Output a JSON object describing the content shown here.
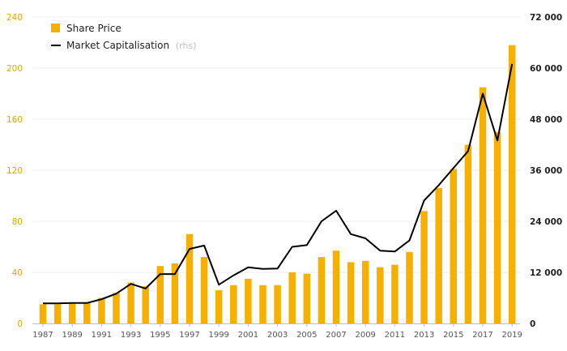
{
  "chart_data": {
    "type": "bar",
    "x": [
      1987,
      1988,
      1989,
      1990,
      1991,
      1992,
      1993,
      1994,
      1995,
      1996,
      1997,
      1998,
      1999,
      2000,
      2001,
      2002,
      2003,
      2004,
      2005,
      2006,
      2007,
      2008,
      2009,
      2010,
      2011,
      2012,
      2013,
      2014,
      2015,
      2016,
      2017,
      2018,
      2019
    ],
    "x_tick_labels": [
      "1987",
      "1989",
      "1991",
      "1993",
      "1995",
      "1997",
      "1999",
      "2001",
      "2003",
      "2005",
      "2007",
      "2009",
      "2011",
      "2013",
      "2015",
      "2017",
      "2019"
    ],
    "series": [
      {
        "name": "Share Price",
        "kind": "bar",
        "axis": "left",
        "color": "#f5b000",
        "values": [
          15,
          15,
          16,
          16,
          20,
          24,
          32,
          29,
          45,
          47,
          70,
          52,
          26,
          30,
          35,
          30,
          30,
          40,
          39,
          52,
          57,
          48,
          49,
          44,
          46,
          56,
          88,
          106,
          121,
          140,
          185,
          150,
          218
        ]
      },
      {
        "name": "Market Capitalisation",
        "name_suffix": "(rhs)",
        "kind": "line",
        "axis": "right",
        "color": "#000000",
        "values": [
          4700,
          4700,
          4800,
          4800,
          5700,
          7000,
          9300,
          8200,
          11600,
          11600,
          17500,
          18300,
          9100,
          11300,
          13200,
          12800,
          12900,
          18000,
          18400,
          24000,
          26500,
          21000,
          20000,
          17100,
          16900,
          19500,
          28900,
          32500,
          36500,
          40500,
          54000,
          43000,
          61000
        ]
      }
    ],
    "y_left": {
      "ylim": [
        0,
        240
      ],
      "ticks": [
        "0",
        "40",
        "80",
        "120",
        "160",
        "200",
        "240"
      ],
      "tick_values": [
        0,
        40,
        80,
        120,
        160,
        200,
        240
      ]
    },
    "y_right": {
      "ylim": [
        0,
        72000
      ],
      "ticks": [
        "0",
        "12 000",
        "24 000",
        "36 000",
        "48 000",
        "60 000",
        "72 000"
      ],
      "tick_values": [
        0,
        12000,
        24000,
        36000,
        48000,
        60000,
        72000
      ]
    },
    "grid": true,
    "legend_position": "top-left",
    "title": "",
    "xlabel": "",
    "ylabel": ""
  }
}
